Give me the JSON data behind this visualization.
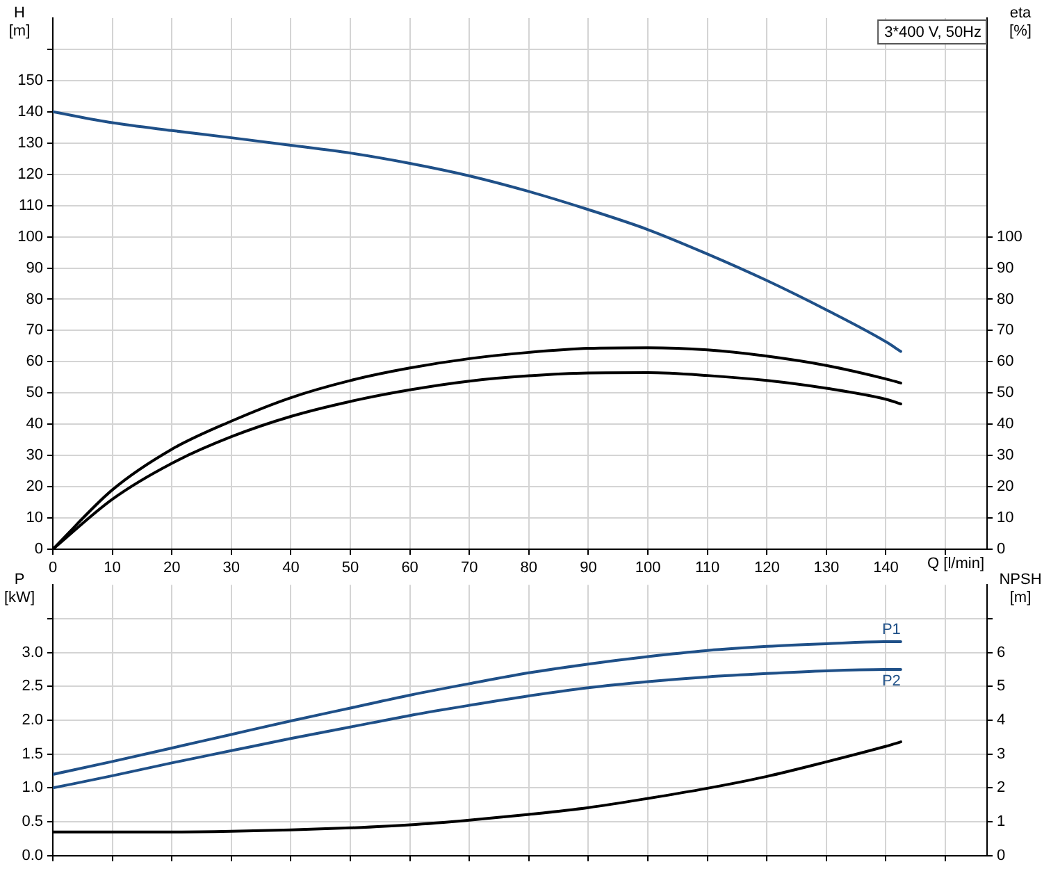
{
  "chart_data": [
    {
      "type": "line",
      "title": "3*400 V, 50Hz",
      "xlabel": "Q [l/min]",
      "ylabel": "H [m]",
      "y2label": "eta [%]",
      "x": [
        0,
        10,
        20,
        30,
        40,
        50,
        60,
        70,
        80,
        90,
        100,
        110,
        120,
        130,
        140,
        142.5
      ],
      "series": [
        {
          "color": "#1f5088",
          "values": [
            140,
            136.5,
            134,
            131.7,
            129.3,
            126.8,
            123.5,
            119.5,
            114.5,
            108.7,
            102.3,
            94.5,
            86,
            76.6,
            66.4,
            63.3
          ]
        },
        {
          "color": "#000000",
          "axis": "y2",
          "values": [
            0,
            19,
            32,
            41,
            48.5,
            54,
            58,
            61,
            63,
            64.3,
            64.5,
            63.8,
            61.8,
            58.8,
            54.5,
            53.2
          ]
        },
        {
          "color": "#000000",
          "axis": "y2",
          "values": [
            0,
            16,
            27.5,
            36,
            42.5,
            47.3,
            51,
            53.8,
            55.5,
            56.4,
            56.5,
            55.6,
            54,
            51.5,
            48,
            46.5
          ]
        }
      ],
      "xlim": [
        0,
        157
      ],
      "xticks": [
        0,
        10,
        20,
        30,
        40,
        50,
        60,
        70,
        80,
        90,
        100,
        110,
        120,
        130,
        140,
        {
          "value": 150,
          "label": null
        }
      ],
      "ylim": [
        0,
        170
      ],
      "yticks": [
        0,
        10,
        20,
        30,
        40,
        50,
        60,
        70,
        80,
        90,
        100,
        110,
        120,
        130,
        140,
        150,
        {
          "value": 160,
          "label": null
        }
      ],
      "y2lim": [
        0,
        170
      ],
      "y2ticks": [
        0,
        10,
        20,
        30,
        40,
        50,
        60,
        70,
        80,
        90,
        100
      ],
      "grid": true,
      "legend": false,
      "marker": "none"
    },
    {
      "type": "line",
      "ylabel": "P [kW]",
      "y2label": "NPSH [m]",
      "x": [
        0,
        10,
        20,
        30,
        40,
        50,
        60,
        70,
        80,
        90,
        100,
        110,
        120,
        130,
        140,
        142.5
      ],
      "series": [
        {
          "name": "P1",
          "color": "#1f5088",
          "values": [
            1.2,
            1.39,
            1.59,
            1.79,
            1.99,
            2.18,
            2.37,
            2.54,
            2.7,
            2.83,
            2.94,
            3.03,
            3.09,
            3.13,
            3.16,
            3.16
          ]
        },
        {
          "name": "P2",
          "color": "#1f5088",
          "values": [
            1.0,
            1.18,
            1.37,
            1.55,
            1.73,
            1.9,
            2.07,
            2.22,
            2.36,
            2.48,
            2.57,
            2.64,
            2.69,
            2.73,
            2.75,
            2.75
          ]
        },
        {
          "color": "#000000",
          "axis": "y2",
          "values": [
            0.7,
            0.7,
            0.7,
            0.72,
            0.76,
            0.82,
            0.91,
            1.05,
            1.22,
            1.42,
            1.69,
            1.99,
            2.34,
            2.77,
            3.23,
            3.36
          ]
        }
      ],
      "xlim": [
        0,
        157
      ],
      "xticks": [
        0,
        10,
        20,
        30,
        40,
        50,
        60,
        70,
        80,
        90,
        100,
        110,
        120,
        130,
        140,
        {
          "value": 150,
          "label": null
        }
      ],
      "ylim": [
        0,
        4
      ],
      "yticks": [
        {
          "value": 0,
          "label": "0.0"
        },
        0.5,
        {
          "value": 1,
          "label": "1.0"
        },
        1.5,
        {
          "value": 2,
          "label": "2.0"
        },
        2.5,
        {
          "value": 3,
          "label": "3.0"
        },
        {
          "value": 3.5,
          "label": null
        }
      ],
      "y2lim": [
        0,
        8
      ],
      "y2ticks": [
        0,
        1,
        2,
        3,
        4,
        5,
        6,
        {
          "value": 7,
          "label": null
        }
      ],
      "grid": true,
      "legend": false,
      "marker": "none",
      "tick_labels": "y"
    }
  ]
}
